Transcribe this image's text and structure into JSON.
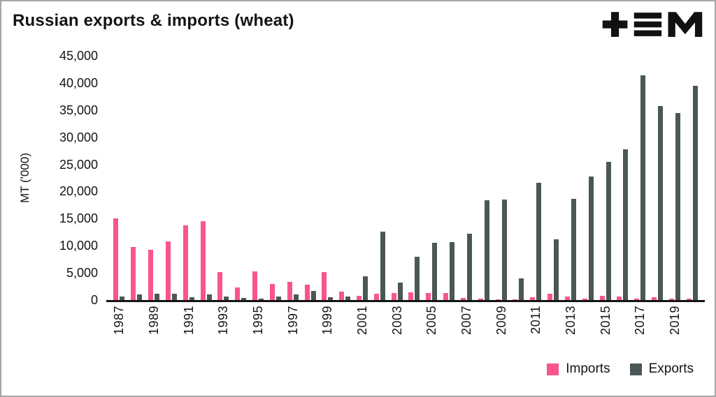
{
  "title": "Russian exports & imports (wheat)",
  "axis": {
    "y_title": "MT ('000)"
  },
  "legend": [
    {
      "label": "Imports",
      "color": "#f9548d"
    },
    {
      "label": "Exports",
      "color": "#4b5756"
    }
  ],
  "colors": {
    "imports": "#f9548d",
    "exports": "#4b5756",
    "text": "#141414",
    "axis_line": "#141414"
  },
  "chart_data": {
    "type": "bar",
    "title": "Russian exports & imports (wheat)",
    "xlabel": "",
    "ylabel": "MT ('000)",
    "ylim": [
      0,
      45000
    ],
    "ytick_interval": 5000,
    "ytick_labels": [
      "0",
      "5,000",
      "10,000",
      "15,000",
      "20,000",
      "25,000",
      "30,000",
      "35,000",
      "40,000",
      "45,000"
    ],
    "grid": false,
    "legend_position": "bottom-right",
    "categories": [
      1987,
      1988,
      1989,
      1990,
      1991,
      1992,
      1993,
      1994,
      1995,
      1996,
      1997,
      1998,
      1999,
      2000,
      2001,
      2002,
      2003,
      2004,
      2005,
      2006,
      2007,
      2008,
      2009,
      2010,
      2011,
      2012,
      2013,
      2014,
      2015,
      2016,
      2017,
      2018,
      2019,
      2020
    ],
    "xtick_labels": [
      "1987",
      "1989",
      "1991",
      "1993",
      "1995",
      "1997",
      "1999",
      "2001",
      "2003",
      "2005",
      "2007",
      "2009",
      "2011",
      "2013",
      "2015",
      "2017",
      "2019"
    ],
    "series": [
      {
        "name": "Imports",
        "color": "#f9548d",
        "values": [
          15000,
          9800,
          9200,
          10800,
          13700,
          14500,
          5100,
          2300,
          5300,
          3000,
          3300,
          2800,
          5100,
          1600,
          800,
          1200,
          1300,
          1400,
          1300,
          1300,
          400,
          200,
          100,
          100,
          500,
          1200,
          700,
          300,
          800,
          700,
          300,
          500,
          300,
          300
        ]
      },
      {
        "name": "Exports",
        "color": "#4b5756",
        "values": [
          700,
          1000,
          1200,
          1200,
          500,
          1000,
          600,
          400,
          300,
          700,
          1000,
          1700,
          500,
          700,
          4400,
          12600,
          3200,
          8000,
          10500,
          10700,
          12200,
          18400,
          18500,
          4000,
          21600,
          11200,
          18600,
          22800,
          25500,
          27800,
          41400,
          35800,
          34400,
          39500
        ]
      }
    ]
  }
}
